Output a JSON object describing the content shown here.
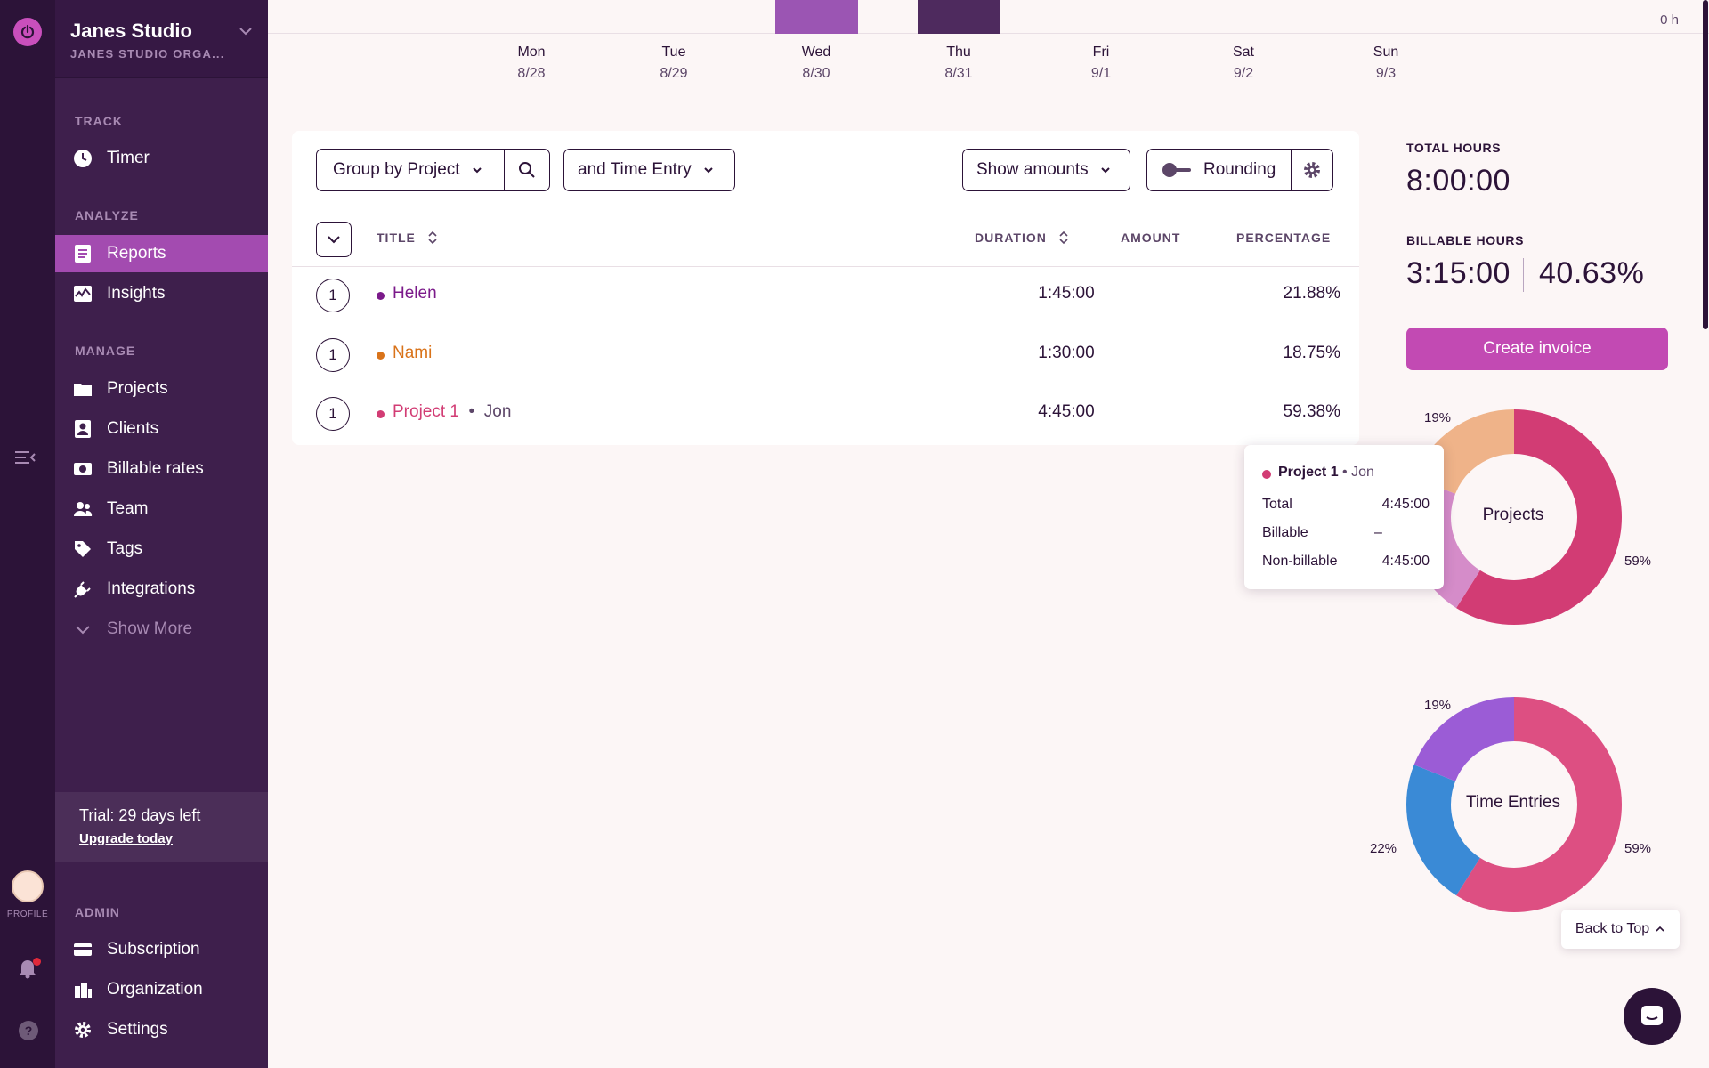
{
  "workspace": {
    "name": "Janes Studio",
    "org": "JANES STUDIO ORGA..."
  },
  "sidebar": {
    "track_label": "TRACK",
    "timer": "Timer",
    "analyze_label": "ANALYZE",
    "reports": "Reports",
    "insights": "Insights",
    "manage_label": "MANAGE",
    "projects": "Projects",
    "clients": "Clients",
    "billable_rates": "Billable rates",
    "team": "Team",
    "tags": "Tags",
    "integrations": "Integrations",
    "show_more": "Show More",
    "trial_text": "Trial: 29 days left",
    "upgrade": "Upgrade today",
    "admin_label": "ADMIN",
    "subscription": "Subscription",
    "organization": "Organization",
    "settings": "Settings"
  },
  "rail": {
    "profile": "PROFILE"
  },
  "week_chart": {
    "zero_label": "0 h",
    "days": [
      {
        "name": "Mon",
        "date": "8/28"
      },
      {
        "name": "Tue",
        "date": "8/29"
      },
      {
        "name": "Wed",
        "date": "8/30"
      },
      {
        "name": "Thu",
        "date": "8/31"
      },
      {
        "name": "Fri",
        "date": "9/1"
      },
      {
        "name": "Sat",
        "date": "9/2"
      },
      {
        "name": "Sun",
        "date": "9/3"
      }
    ],
    "colors": {
      "wed": "#9b55b3",
      "thu": "#4e2a5e"
    }
  },
  "toolbar": {
    "group_by": "Group by Project",
    "sub_group": "and Time Entry",
    "show_amounts": "Show amounts",
    "rounding": "Rounding"
  },
  "table": {
    "headers": {
      "title": "TITLE",
      "duration": "DURATION",
      "amount": "AMOUNT",
      "percentage": "PERCENTAGE"
    },
    "rows": [
      {
        "count": "1",
        "title": "Helen",
        "client": "",
        "duration": "1:45:00",
        "percentage": "21.88%",
        "color": "#7b1a8a"
      },
      {
        "count": "1",
        "title": "Nami",
        "client": "",
        "duration": "1:30:00",
        "percentage": "18.75%",
        "color": "#d9731a"
      },
      {
        "count": "1",
        "title": "Project 1",
        "client": "Jon",
        "duration": "4:45:00",
        "percentage": "59.38%",
        "color": "#d23c74"
      }
    ]
  },
  "summary": {
    "total_label": "TOTAL HOURS",
    "total_value": "8:00:00",
    "billable_label": "BILLABLE HOURS",
    "billable_value": "3:15:00",
    "billable_pct": "40.63%",
    "create_invoice": "Create invoice"
  },
  "donut_projects": {
    "center": "Projects",
    "label_top": "19%",
    "label_right": "59%",
    "segments": [
      {
        "value": 59,
        "color": "#d23c74"
      },
      {
        "value": 22,
        "color": "#d58cc9"
      },
      {
        "value": 19,
        "color": "#efb389"
      }
    ]
  },
  "donut_entries": {
    "center": "Time Entries",
    "label_top": "19%",
    "label_right": "59%",
    "label_left": "22%",
    "segments": [
      {
        "value": 59,
        "color": "#dd4f82"
      },
      {
        "value": 22,
        "color": "#3a8ad6"
      },
      {
        "value": 19,
        "color": "#9b5cd6"
      }
    ]
  },
  "tooltip": {
    "title": "Project 1",
    "client": "• Jon",
    "total_label": "Total",
    "total_value": "4:45:00",
    "billable_label": "Billable",
    "billable_value": "–",
    "nonbillable_label": "Non-billable",
    "nonbillable_value": "4:45:00",
    "color": "#d23c74"
  },
  "back_to_top": "Back to Top"
}
